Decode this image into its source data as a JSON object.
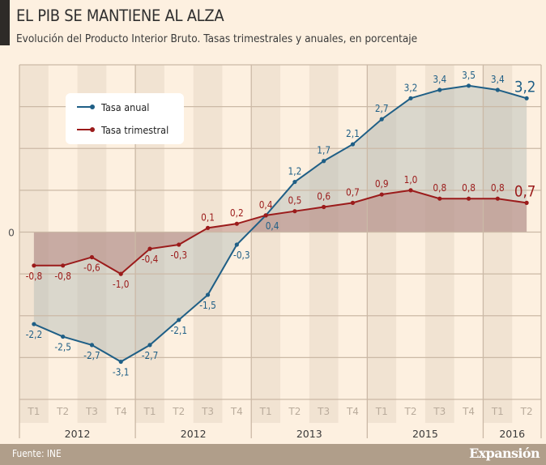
{
  "header": {
    "title": "EL PIB SE MANTIENE AL ALZA",
    "subtitle": "Evolución del Producto Interior Bruto. Tasas trimestrales y anuales, en porcentaje"
  },
  "footer": {
    "source": "Fuente: INE",
    "brand": "Expansión"
  },
  "colors": {
    "background": "#fdf0e0",
    "stripe": "#f1e3d2",
    "grid": "#cbb9a6",
    "annual": "#1f5f86",
    "quarterly": "#9b1b1b",
    "annual_fill": "#b7bdb7",
    "quarterly_fill": "#b57f7a",
    "footer": "#b09e8a"
  },
  "chart_data": {
    "type": "area",
    "title": "EL PIB SE MANTIENE AL ALZA",
    "subtitle": "Evolución del Producto Interior Bruto. Tasas trimestrales y anuales, en porcentaje",
    "xlabel": "",
    "ylabel": "",
    "ylim": [
      -4,
      4
    ],
    "y_ticks": [
      -4,
      -3,
      -2,
      -1,
      0,
      1,
      2,
      3,
      4
    ],
    "y_tick_labels_shown": [
      "0"
    ],
    "grid": true,
    "legend_position": "top-left",
    "categories": [
      "T1",
      "T2",
      "T3",
      "T4",
      "T1",
      "T2",
      "T3",
      "T4",
      "T1",
      "T2",
      "T3",
      "T4",
      "T1",
      "T2",
      "T3",
      "T4",
      "T1",
      "T2"
    ],
    "year_groups": [
      {
        "label": "2012",
        "quarters": 4
      },
      {
        "label": "2012",
        "quarters": 4
      },
      {
        "label": "2013",
        "quarters": 4
      },
      {
        "label": "2015",
        "quarters": 4
      },
      {
        "label": "2016",
        "quarters": 2
      }
    ],
    "series": [
      {
        "name": "Tasa anual",
        "color": "#1f5f86",
        "values": [
          -2.2,
          -2.5,
          -2.7,
          -3.1,
          -2.7,
          -2.1,
          -1.5,
          -0.3,
          0.4,
          1.2,
          1.7,
          2.1,
          2.7,
          3.2,
          3.4,
          3.5,
          3.4,
          3.2
        ],
        "labels": [
          "-2,2",
          "-2,5",
          "-2,7",
          "-3,1",
          "-2,7",
          "-2,1",
          "-1,5",
          "-0,3",
          "0,4",
          "1,2",
          "1,7",
          "2,1",
          "2,7",
          "3,2",
          "3,4",
          "3,5",
          "3,4",
          "3,2"
        ]
      },
      {
        "name": "Tasa trimestral",
        "color": "#9b1b1b",
        "values": [
          -0.8,
          -0.8,
          -0.6,
          -1.0,
          -0.4,
          -0.3,
          0.1,
          0.2,
          0.4,
          0.5,
          0.6,
          0.7,
          0.9,
          1.0,
          0.8,
          0.8,
          0.8,
          0.7
        ],
        "labels": [
          "-0,8",
          "-0,8",
          "-0,6",
          "-1,0",
          "-0,4",
          "-0,3",
          "0,1",
          "0,2",
          "0,4",
          "0,5",
          "0,6",
          "0,7",
          "0,9",
          "1,0",
          "0,8",
          "0,8",
          "0,8",
          "0,7"
        ]
      }
    ]
  }
}
